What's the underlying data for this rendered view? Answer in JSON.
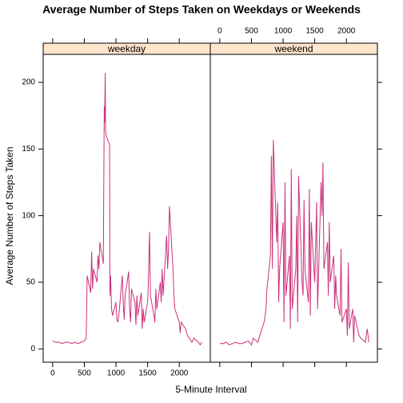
{
  "chart_data": {
    "type": "line",
    "title": "Average Number of Steps Taken on Weekdays or Weekends",
    "xlabel": "5-Minute Interval",
    "ylabel": "Average Number of Steps Taken",
    "xlim": [
      -150,
      2490
    ],
    "ylim": [
      -10,
      221
    ],
    "xticks": [
      0,
      500,
      1000,
      1500,
      2000
    ],
    "yticks": [
      0,
      50,
      100,
      150,
      200
    ],
    "strip_color": "#ffe5cc",
    "panels": [
      {
        "name": "weekday",
        "color": "#cc2f7a",
        "x": [
          0,
          50,
          100,
          150,
          200,
          250,
          300,
          350,
          400,
          450,
          500,
          530,
          545,
          600,
          615,
          630,
          645,
          700,
          715,
          730,
          745,
          800,
          815,
          820,
          830,
          835,
          845,
          900,
          905,
          915,
          930,
          945,
          1000,
          1015,
          1030,
          1045,
          1100,
          1115,
          1130,
          1145,
          1200,
          1215,
          1230,
          1245,
          1300,
          1315,
          1330,
          1345,
          1400,
          1415,
          1430,
          1445,
          1500,
          1515,
          1530,
          1545,
          1600,
          1615,
          1630,
          1645,
          1700,
          1715,
          1730,
          1745,
          1800,
          1815,
          1830,
          1845,
          1900,
          1915,
          1930,
          2000,
          2015,
          2030,
          2100,
          2130,
          2200,
          2230,
          2300,
          2330,
          2355
        ],
        "values": [
          6,
          5,
          5,
          4,
          5,
          5,
          4,
          5,
          4,
          5,
          6,
          8,
          55,
          42,
          73,
          45,
          60,
          50,
          70,
          60,
          80,
          64,
          182,
          170,
          207,
          165,
          160,
          153,
          40,
          55,
          30,
          25,
          35,
          22,
          20,
          25,
          55,
          35,
          22,
          40,
          58,
          30,
          20,
          45,
          35,
          18,
          40,
          25,
          42,
          15,
          30,
          20,
          35,
          55,
          88,
          40,
          25,
          20,
          45,
          30,
          50,
          35,
          60,
          40,
          85,
          60,
          75,
          107,
          60,
          40,
          30,
          20,
          12,
          20,
          15,
          10,
          5,
          8,
          5,
          3,
          5
        ]
      },
      {
        "name": "weekend",
        "color": "#cc2f7a",
        "x": [
          0,
          50,
          100,
          150,
          200,
          250,
          300,
          350,
          400,
          450,
          500,
          530,
          600,
          630,
          700,
          730,
          745,
          800,
          815,
          830,
          845,
          900,
          915,
          930,
          945,
          1000,
          1015,
          1030,
          1045,
          1100,
          1115,
          1130,
          1145,
          1200,
          1215,
          1230,
          1245,
          1300,
          1315,
          1330,
          1345,
          1400,
          1415,
          1430,
          1445,
          1500,
          1515,
          1530,
          1545,
          1600,
          1615,
          1630,
          1645,
          1700,
          1715,
          1730,
          1745,
          1800,
          1815,
          1830,
          1845,
          1900,
          1915,
          1930,
          2000,
          2015,
          2030,
          2045,
          2100,
          2115,
          2130,
          2200,
          2230,
          2300,
          2330,
          2355
        ],
        "values": [
          4,
          4,
          5,
          3,
          4,
          5,
          4,
          4,
          5,
          6,
          3,
          8,
          5,
          10,
          20,
          30,
          45,
          70,
          145,
          60,
          157,
          80,
          110,
          35,
          60,
          95,
          20,
          125,
          40,
          70,
          15,
          135,
          30,
          60,
          100,
          20,
          130,
          50,
          40,
          112,
          60,
          35,
          120,
          25,
          95,
          50,
          80,
          110,
          30,
          125,
          100,
          140,
          60,
          80,
          40,
          95,
          50,
          70,
          30,
          55,
          40,
          25,
          75,
          20,
          30,
          10,
          65,
          15,
          30,
          5,
          25,
          10,
          8,
          5,
          15,
          5
        ]
      }
    ]
  }
}
